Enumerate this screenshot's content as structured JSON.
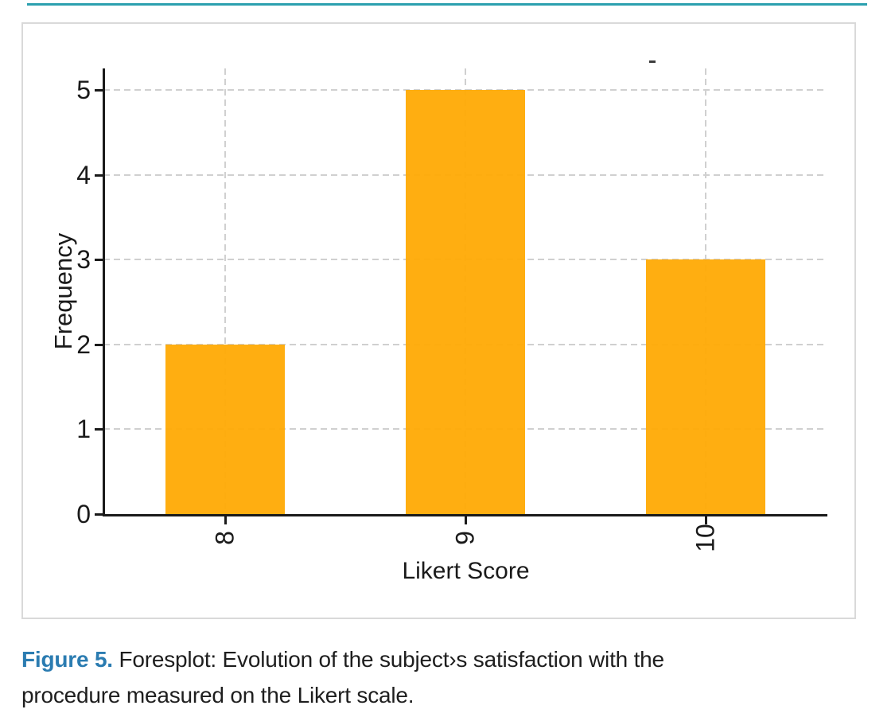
{
  "page": {
    "caption": {
      "label": "Figure 5.",
      "text_line1": "Foresplot: Evolution of the subject›s satisfaction with the",
      "text_line2": "procedure measured on the Likert scale."
    }
  },
  "chart_data": {
    "type": "bar",
    "title": "",
    "categories": [
      "8",
      "9",
      "10"
    ],
    "values": [
      2,
      5,
      3
    ],
    "xlabel": "Likert Score",
    "ylabel": "Frequency",
    "ylim": [
      0,
      5
    ],
    "yticks": [
      0,
      1,
      2,
      3,
      4,
      5
    ],
    "grid": "dashed horizontal and vertical gridlines",
    "legend_position": "none",
    "x_tick_rotation_deg": -90,
    "bar_color": "#FFA902"
  },
  "colors": {
    "bar": "#FFA902",
    "caption_accent": "#2B7CB1",
    "top_rule": "#2BA0AF",
    "figure_border": "#D9D9D9",
    "gridline": "#D0D0D0",
    "axis": "#1A1A1A"
  }
}
